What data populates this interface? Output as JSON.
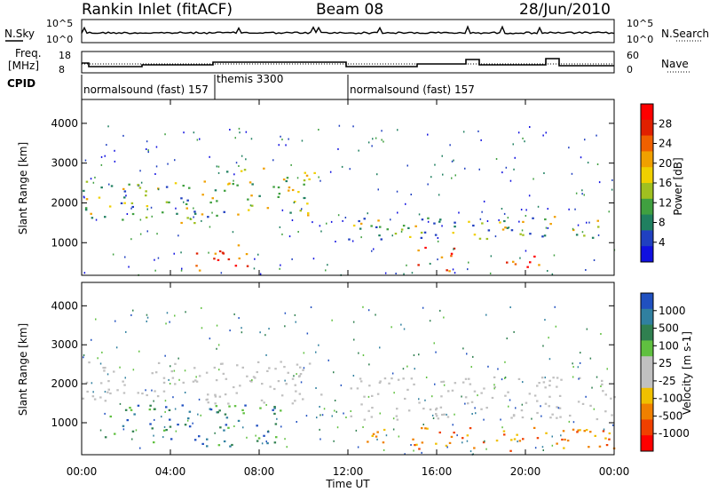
{
  "header": {
    "station": "Rankin Inlet (fitACF)",
    "beam": "Beam 08",
    "date": "28/Jun/2010"
  },
  "nsky_panel": {
    "left_label": "N.Sky",
    "right_label": "N.Search",
    "left_ticks": [
      "10^5",
      "10^0"
    ],
    "right_ticks": [
      "10^5",
      "10^0"
    ]
  },
  "freq_panel": {
    "left_label_line1": "Freq.",
    "left_label_line2": "[MHz]",
    "right_label": "Nave",
    "left_ticks": [
      "18",
      "8"
    ],
    "right_ticks": [
      "60",
      "0"
    ]
  },
  "cpid": {
    "label": "CPID",
    "segments": [
      {
        "start": 0.0,
        "end": 6.0,
        "text": "normalsound (fast) 157"
      },
      {
        "start": 6.0,
        "end": 12.0,
        "text": "themis 3300"
      },
      {
        "start": 12.0,
        "end": 24.0,
        "text": "normalsound (fast) 157"
      }
    ]
  },
  "colors": {
    "power_scale": [
      "#1010e0",
      "#2040c0",
      "#208060",
      "#40a040",
      "#a0c020",
      "#f0d000",
      "#f0a000",
      "#f06000",
      "#e02000",
      "#ff0000"
    ],
    "velocity_scale": [
      "#2050c0",
      "#3080a0",
      "#308050",
      "#60c040",
      "#c0c0c0",
      "#c0c0c0",
      "#f0c000",
      "#f08000",
      "#f04000",
      "#ff0000"
    ]
  },
  "chart_data": [
    {
      "type": "heatmap",
      "panel": "power",
      "ylabel": "Slant Range [km]",
      "yticks": [
        "1000",
        "2000",
        "3000",
        "4000"
      ],
      "ylim": [
        180,
        4600
      ],
      "xlim": [
        0,
        24
      ],
      "colorbar_label": "Power [dB]",
      "colorbar_ticks": [
        "4",
        "8",
        "12",
        "16",
        "20",
        "24",
        "28"
      ],
      "features": [
        {
          "t0": 0.0,
          "t1": 6.0,
          "r0": 1500,
          "r1": 2600,
          "level": "medium"
        },
        {
          "t0": 6.0,
          "t1": 10.5,
          "r0": 1700,
          "r1": 2900,
          "level": "medium"
        },
        {
          "t0": 12.0,
          "t1": 24.0,
          "r0": 1100,
          "r1": 1700,
          "level": "medium"
        },
        {
          "t0": 15.0,
          "t1": 16.8,
          "r0": 300,
          "r1": 900,
          "level": "high"
        },
        {
          "t0": 18.8,
          "t1": 21.0,
          "r0": 300,
          "r1": 700,
          "level": "high"
        },
        {
          "t0": 5.0,
          "t1": 7.5,
          "r0": 300,
          "r1": 1000,
          "level": "high"
        }
      ]
    },
    {
      "type": "heatmap",
      "panel": "velocity",
      "ylabel": "Slant Range [km]",
      "yticks": [
        "1000",
        "2000",
        "3000",
        "4000"
      ],
      "ylim": [
        180,
        4600
      ],
      "xlim": [
        0,
        24
      ],
      "xlabel": "Time UT",
      "xticks": [
        "00:00",
        "04:00",
        "08:00",
        "12:00",
        "16:00",
        "20:00",
        "00:00"
      ],
      "colorbar_label": "Velocity [m s-1]",
      "colorbar_ticks": [
        "1000",
        "500",
        "100",
        "25",
        "-25",
        "-100",
        "-500",
        "-1000"
      ],
      "features": [
        {
          "t0": 0.0,
          "t1": 11.0,
          "r0": 1500,
          "r1": 2600,
          "level": "ground"
        },
        {
          "t0": 12.0,
          "t1": 24.0,
          "r0": 1100,
          "r1": 2200,
          "level": "ground"
        },
        {
          "t0": 12.0,
          "t1": 24.0,
          "r0": 300,
          "r1": 900,
          "level": "negative"
        },
        {
          "t0": 1.0,
          "t1": 9.0,
          "r0": 400,
          "r1": 1500,
          "level": "positive"
        }
      ]
    }
  ]
}
